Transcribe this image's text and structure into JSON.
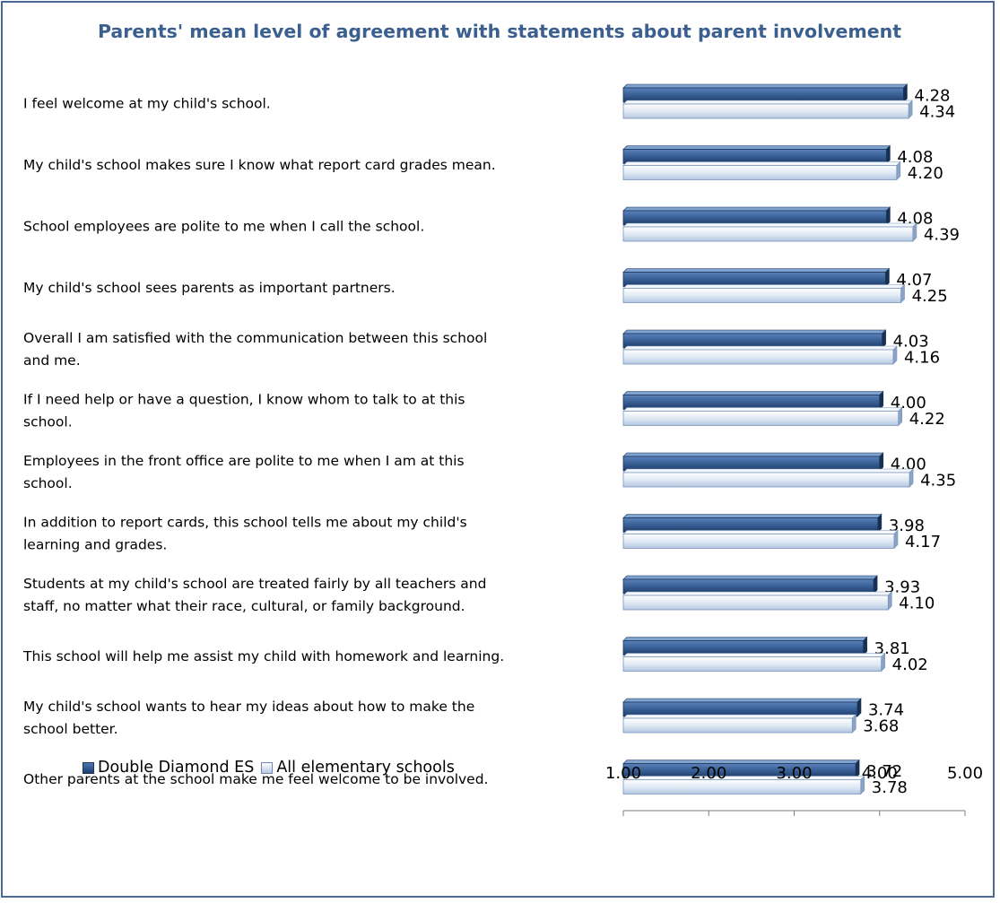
{
  "chart_data": {
    "type": "bar",
    "orientation": "horizontal",
    "title": "Parents' mean level of agreement with statements about parent involvement",
    "categories": [
      [
        "I feel welcome at my child's school."
      ],
      [
        "My child's school makes sure I know what report card grades mean."
      ],
      [
        "School employees are polite to me when I call the school."
      ],
      [
        "My child's school sees parents as important partners."
      ],
      [
        "Overall I am satisfied with the communication between this school",
        "and me."
      ],
      [
        "If I need help or have a question, I know whom to talk to at this",
        "school."
      ],
      [
        "Employees in the front office are polite to me when I am at this",
        "school."
      ],
      [
        "In addition to report cards, this school tells me about my child's",
        "learning and grades."
      ],
      [
        "Students at my child's school are treated fairly by all teachers and",
        "staff, no matter what their race, cultural, or family background."
      ],
      [
        "This school will help me assist my child with homework and learning."
      ],
      [
        "My child's school wants to hear my ideas about how to make the",
        "school better."
      ],
      [
        "Other parents at the school make me feel welcome to be involved."
      ]
    ],
    "series": [
      {
        "name": "Double Diamond ES",
        "color": "#2e5487",
        "values": [
          4.28,
          4.08,
          4.08,
          4.07,
          4.03,
          4.0,
          4.0,
          3.98,
          3.93,
          3.81,
          3.74,
          3.72
        ],
        "labels": [
          "4.28",
          "4.08",
          "4.08",
          "4.07",
          "4.03",
          "4.00",
          "4.00",
          "3.98",
          "3.93",
          "3.81",
          "3.74",
          "3.72"
        ]
      },
      {
        "name": "All elementary schools",
        "color": "#c9d8ec",
        "values": [
          4.34,
          4.2,
          4.39,
          4.25,
          4.16,
          4.22,
          4.35,
          4.17,
          4.1,
          4.02,
          3.68,
          3.78
        ],
        "labels": [
          "4.34",
          "4.20",
          "4.39",
          "4.25",
          "4.16",
          "4.22",
          "4.35",
          "4.17",
          "4.10",
          "4.02",
          "3.68",
          "3.78"
        ]
      }
    ],
    "xlim": [
      1.0,
      5.0
    ],
    "xticks": [
      1.0,
      2.0,
      3.0,
      4.0,
      5.0
    ],
    "xtick_labels": [
      "1.00",
      "2.00",
      "3.00",
      "4.00",
      "5.00"
    ],
    "grid": false,
    "legend": "bottom-left"
  }
}
